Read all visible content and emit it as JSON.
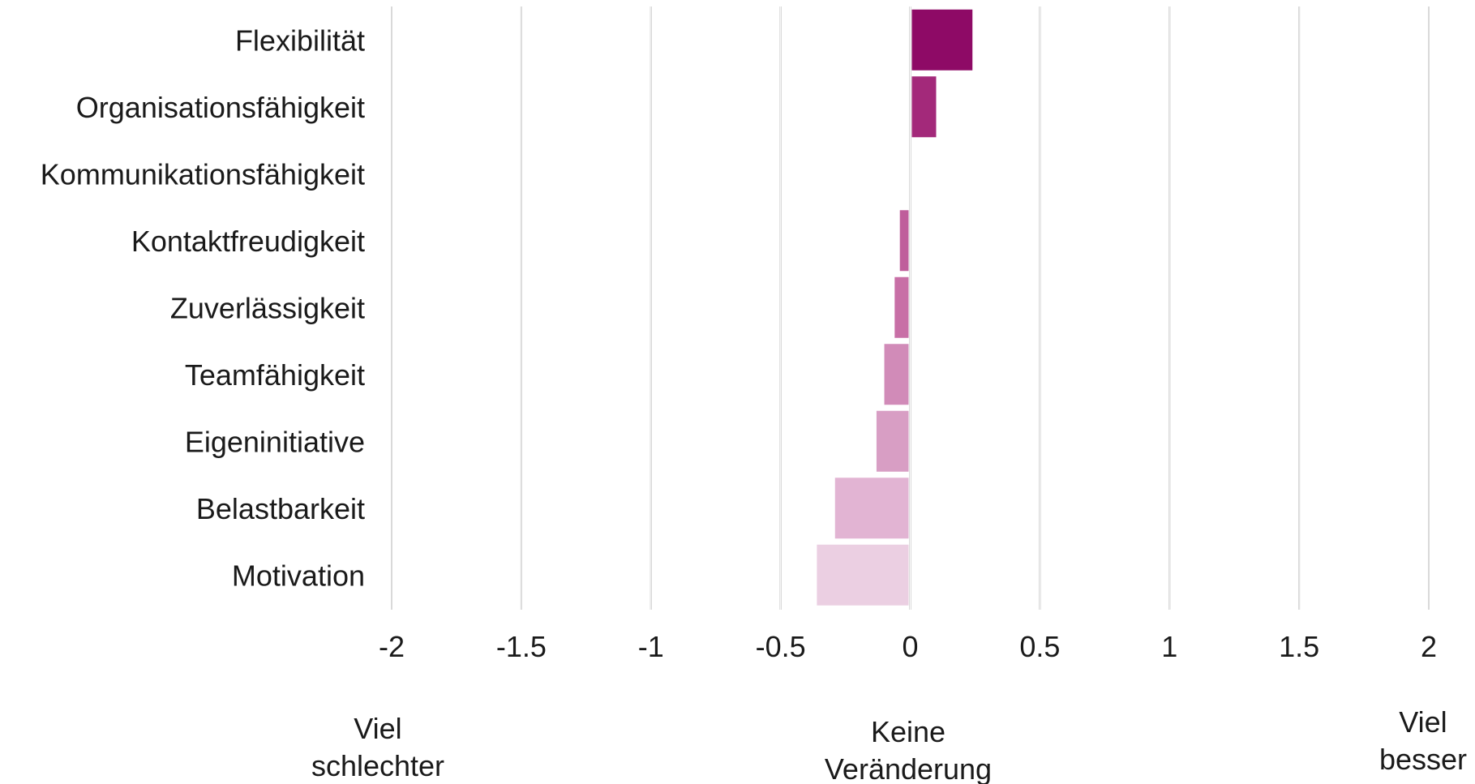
{
  "chart_data": {
    "type": "bar",
    "orientation": "horizontal",
    "title": "",
    "xlabel": "",
    "ylabel": "",
    "xlim": [
      -2,
      2
    ],
    "x_ticks": [
      -2,
      -1.5,
      -1,
      -0.5,
      0,
      0.5,
      1,
      1.5,
      2
    ],
    "x_tick_labels": [
      "-2",
      "-1.5",
      "-1",
      "-0.5",
      "0",
      "0.5",
      "1",
      "1.5",
      "2"
    ],
    "grid": true,
    "categories": [
      "Flexibilität",
      "Organisationsfähigkeit",
      "Kommunikationsfähigkeit",
      "Kontaktfreudigkeit",
      "Zuverlässigkeit",
      "Teamfähigkeit",
      "Eigeninitiative",
      "Belastbarkeit",
      "Motivation"
    ],
    "values": [
      0.24,
      0.1,
      0.0,
      -0.04,
      -0.06,
      -0.1,
      -0.13,
      -0.29,
      -0.36
    ],
    "bar_colors": [
      "#8e0a66",
      "#a3297a",
      "#b44b8e",
      "#bf5e9b",
      "#c86fa6",
      "#d18bb8",
      "#d89ec4",
      "#e2b4d3",
      "#ebcfe2"
    ],
    "scale_labels": {
      "left": [
        "Viel",
        "schlechter"
      ],
      "center": [
        "Keine",
        "Veränderung"
      ],
      "right": [
        "Viel",
        "besser"
      ]
    }
  }
}
